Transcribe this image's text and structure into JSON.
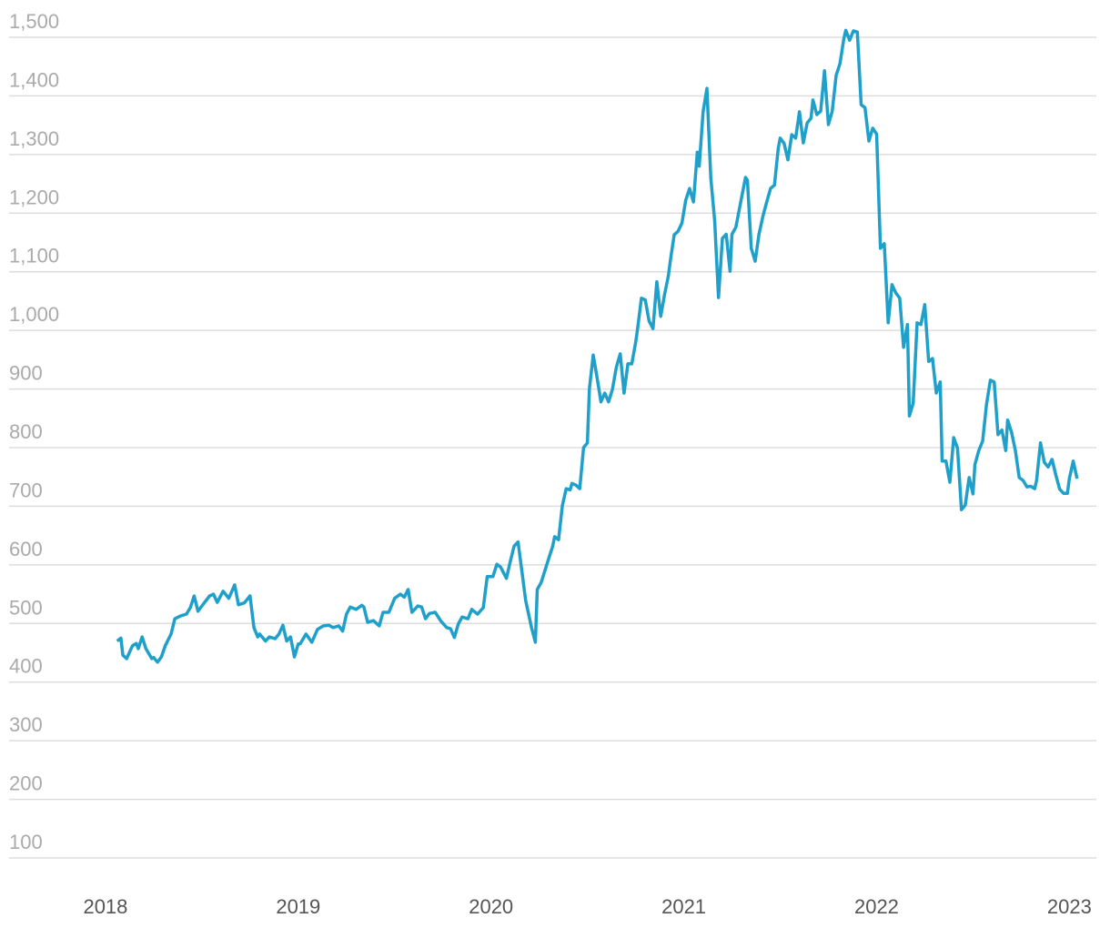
{
  "chart_data": {
    "type": "line",
    "x": [
      2018.06,
      2018.08,
      2018.09,
      2018.11,
      2018.14,
      2018.16,
      2018.17,
      2018.19,
      2018.21,
      2018.24,
      2018.25,
      2018.27,
      2018.29,
      2018.31,
      2018.34,
      2018.36,
      2018.39,
      2018.42,
      2018.44,
      2018.46,
      2018.48,
      2018.5,
      2018.54,
      2018.56,
      2018.58,
      2018.61,
      2018.64,
      2018.67,
      2018.69,
      2018.72,
      2018.75,
      2018.77,
      2018.79,
      2018.8,
      2018.83,
      2018.85,
      2018.88,
      2018.9,
      2018.92,
      2018.94,
      2018.96,
      2018.98,
      2019.0,
      2019.01,
      2019.04,
      2019.07,
      2019.1,
      2019.13,
      2019.16,
      2019.18,
      2019.21,
      2019.23,
      2019.25,
      2019.27,
      2019.3,
      2019.33,
      2019.34,
      2019.36,
      2019.39,
      2019.42,
      2019.44,
      2019.47,
      2019.5,
      2019.53,
      2019.55,
      2019.57,
      2019.59,
      2019.62,
      2019.64,
      2019.66,
      2019.68,
      2019.71,
      2019.74,
      2019.77,
      2019.79,
      2019.81,
      2019.83,
      2019.85,
      2019.88,
      2019.9,
      2019.93,
      2019.96,
      2019.98,
      2020.01,
      2020.03,
      2020.05,
      2020.08,
      2020.1,
      2020.12,
      2020.14,
      2020.16,
      2020.18,
      2020.21,
      2020.23,
      2020.24,
      2020.26,
      2020.29,
      2020.32,
      2020.33,
      2020.35,
      2020.37,
      2020.39,
      2020.41,
      2020.42,
      2020.44,
      2020.46,
      2020.48,
      2020.5,
      2020.51,
      2020.53,
      2020.55,
      2020.57,
      2020.59,
      2020.61,
      2020.63,
      2020.65,
      2020.67,
      2020.69,
      2020.71,
      2020.73,
      2020.75,
      2020.76,
      2020.78,
      2020.8,
      2020.82,
      2020.84,
      2020.86,
      2020.88,
      2020.9,
      2020.92,
      2020.93,
      2020.95,
      2020.97,
      2020.99,
      2021.01,
      2021.03,
      2021.05,
      2021.07,
      2021.08,
      2021.1,
      2021.12,
      2021.14,
      2021.16,
      2021.18,
      2021.2,
      2021.22,
      2021.24,
      2021.25,
      2021.27,
      2021.29,
      2021.32,
      2021.33,
      2021.35,
      2021.37,
      2021.39,
      2021.41,
      2021.43,
      2021.45,
      2021.47,
      2021.49,
      2021.5,
      2021.52,
      2021.54,
      2021.56,
      2021.58,
      2021.6,
      2021.62,
      2021.64,
      2021.66,
      2021.67,
      2021.69,
      2021.71,
      2021.73,
      2021.75,
      2021.77,
      2021.79,
      2021.81,
      2021.83,
      2021.84,
      2021.86,
      2021.88,
      2021.9,
      2021.92,
      2021.94,
      2021.96,
      2021.98,
      2022.0,
      2022.02,
      2022.04,
      2022.06,
      2022.08,
      2022.1,
      2022.12,
      2022.14,
      2022.16,
      2022.17,
      2022.19,
      2022.21,
      2022.23,
      2022.25,
      2022.27,
      2022.29,
      2022.31,
      2022.33,
      2022.34,
      2022.36,
      2022.38,
      2022.4,
      2022.42,
      2022.44,
      2022.46,
      2022.48,
      2022.5,
      2022.51,
      2022.53,
      2022.55,
      2022.57,
      2022.59,
      2022.61,
      2022.63,
      2022.65,
      2022.67,
      2022.68,
      2022.7,
      2022.72,
      2022.74,
      2022.76,
      2022.78,
      2022.8,
      2022.82,
      2022.83,
      2022.85,
      2022.87,
      2022.89,
      2022.91,
      2022.93,
      2022.95,
      2022.97,
      2022.99,
      2023.0,
      2023.02,
      2023.04
    ],
    "series": [
      {
        "color": "#1fa0cb",
        "values": [
          470,
          475,
          446,
          440,
          462,
          466,
          457,
          477,
          457,
          440,
          442,
          434,
          443,
          462,
          482,
          508,
          513,
          516,
          527,
          547,
          521,
          530,
          547,
          550,
          536,
          555,
          543,
          566,
          532,
          535,
          547,
          493,
          477,
          482,
          470,
          477,
          474,
          482,
          497,
          470,
          477,
          443,
          465,
          465,
          482,
          468,
          490,
          496,
          497,
          493,
          496,
          487,
          516,
          528,
          524,
          531,
          528,
          502,
          505,
          496,
          519,
          519,
          543,
          550,
          545,
          558,
          519,
          530,
          528,
          508,
          517,
          519,
          504,
          493,
          491,
          476,
          499,
          511,
          508,
          524,
          516,
          527,
          580,
          580,
          601,
          596,
          577,
          606,
          632,
          639,
          589,
          539,
          493,
          468,
          558,
          570,
          601,
          632,
          648,
          643,
          701,
          730,
          728,
          739,
          736,
          730,
          800,
          808,
          900,
          958,
          920,
          878,
          893,
          878,
          900,
          937,
          960,
          893,
          943,
          943,
          979,
          1002,
          1055,
          1052,
          1016,
          1003,
          1083,
          1024,
          1061,
          1093,
          1118,
          1163,
          1169,
          1183,
          1222,
          1242,
          1219,
          1304,
          1280,
          1373,
          1413,
          1261,
          1187,
          1056,
          1157,
          1164,
          1101,
          1164,
          1176,
          1210,
          1261,
          1256,
          1140,
          1118,
          1164,
          1194,
          1219,
          1242,
          1248,
          1311,
          1328,
          1319,
          1291,
          1334,
          1328,
          1373,
          1320,
          1354,
          1362,
          1393,
          1368,
          1374,
          1443,
          1351,
          1374,
          1435,
          1455,
          1497,
          1512,
          1495,
          1511,
          1509,
          1385,
          1380,
          1323,
          1345,
          1335,
          1140,
          1148,
          1013,
          1078,
          1064,
          1055,
          971,
          1010,
          854,
          876,
          1013,
          1010,
          1044,
          947,
          952,
          893,
          912,
          777,
          777,
          741,
          817,
          799,
          694,
          702,
          749,
          721,
          771,
          795,
          811,
          873,
          915,
          912,
          822,
          830,
          795,
          847,
          826,
          795,
          749,
          744,
          733,
          734,
          730,
          744,
          808,
          775,
          767,
          780,
          753,
          729,
          722,
          722,
          747,
          777,
          747
        ]
      }
    ],
    "xlim": [
      2017.5,
      2023.14
    ],
    "xticks": [
      2018,
      2019,
      2020,
      2021,
      2022,
      2023
    ],
    "ylim": [
      100,
      1500
    ],
    "yticks": [
      100,
      200,
      300,
      400,
      500,
      600,
      700,
      800,
      900,
      {
        "value": 1000,
        "label": "1,000"
      },
      {
        "value": 1100,
        "label": "1,100"
      },
      {
        "value": 1200,
        "label": "1,200"
      },
      {
        "value": 1300,
        "label": "1,300"
      },
      {
        "value": 1400,
        "label": "1,400"
      },
      {
        "value": 1500,
        "label": "1,500"
      }
    ],
    "grid": true
  }
}
